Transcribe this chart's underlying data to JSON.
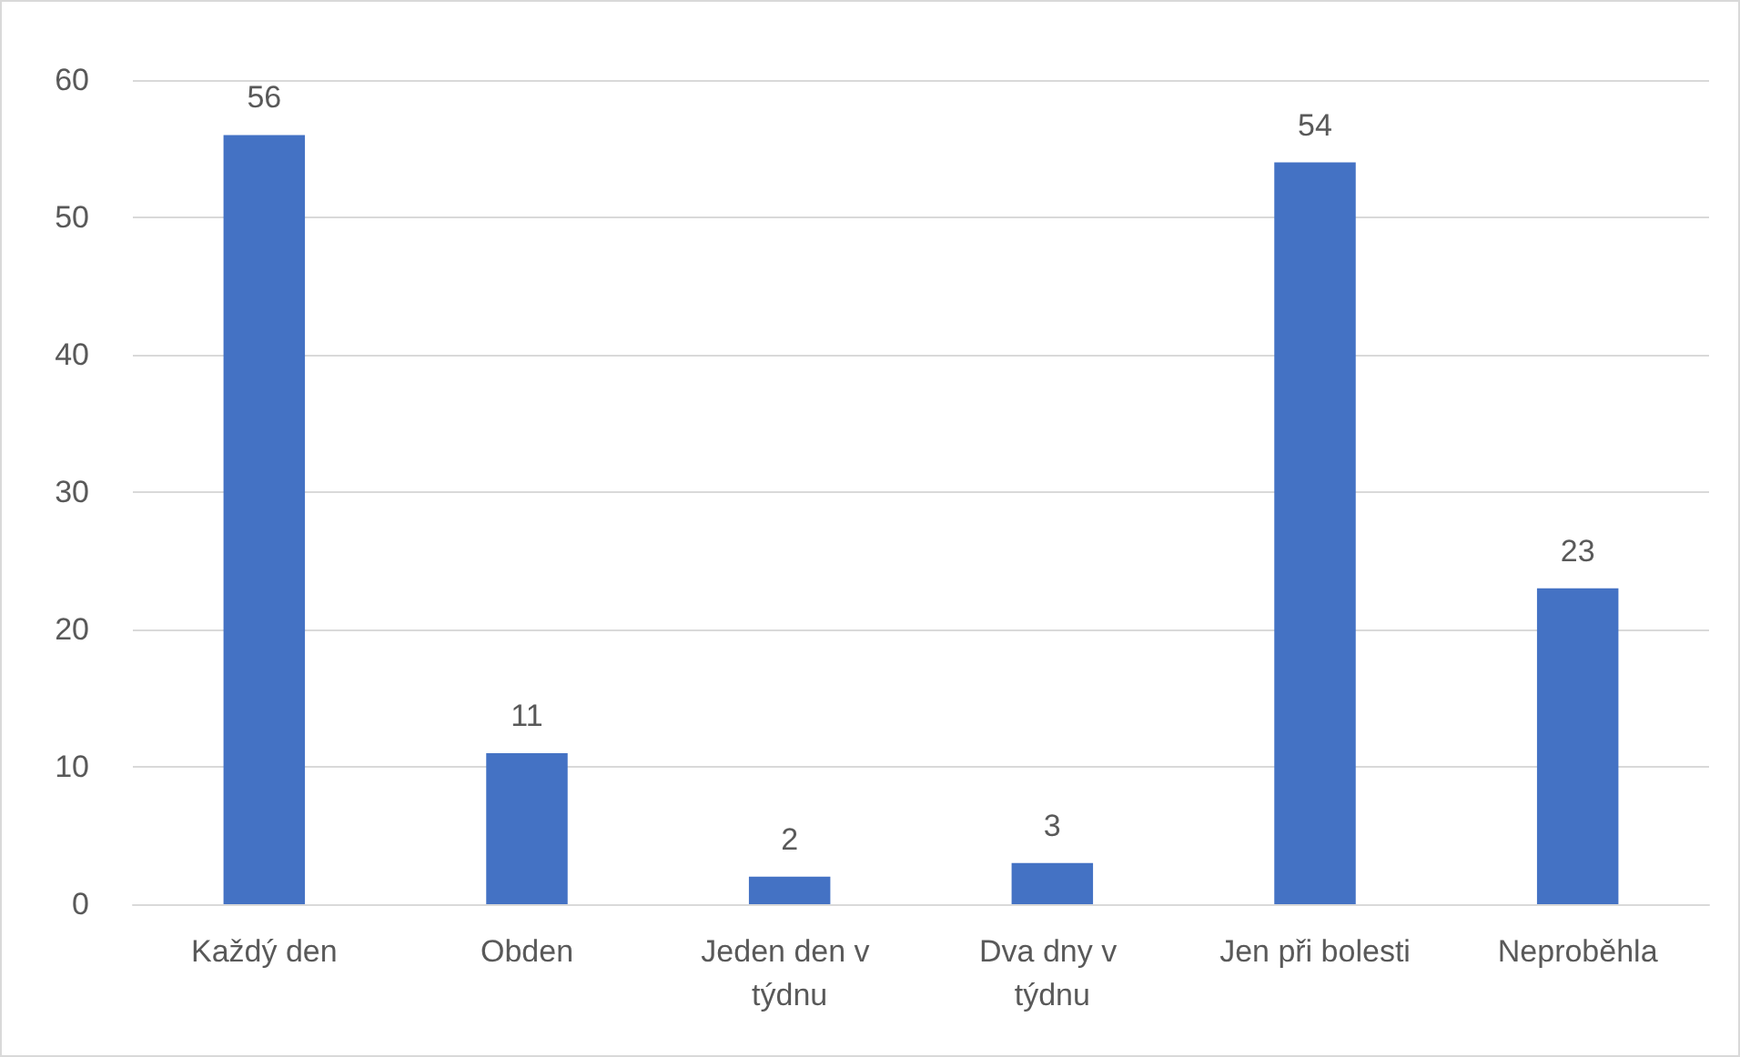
{
  "chart_data": {
    "type": "bar",
    "categories": [
      "Každý den",
      "Obden",
      "Jeden den v týdnu",
      "Dva dny v týdnu",
      "Jen při bolesti",
      "Neproběhla"
    ],
    "values": [
      56,
      11,
      2,
      3,
      54,
      23
    ],
    "color": "#4472c4",
    "ylim": [
      0,
      60
    ],
    "yticks": [
      0,
      10,
      20,
      30,
      40,
      50,
      60
    ],
    "grid": "y",
    "data_labels": true
  }
}
